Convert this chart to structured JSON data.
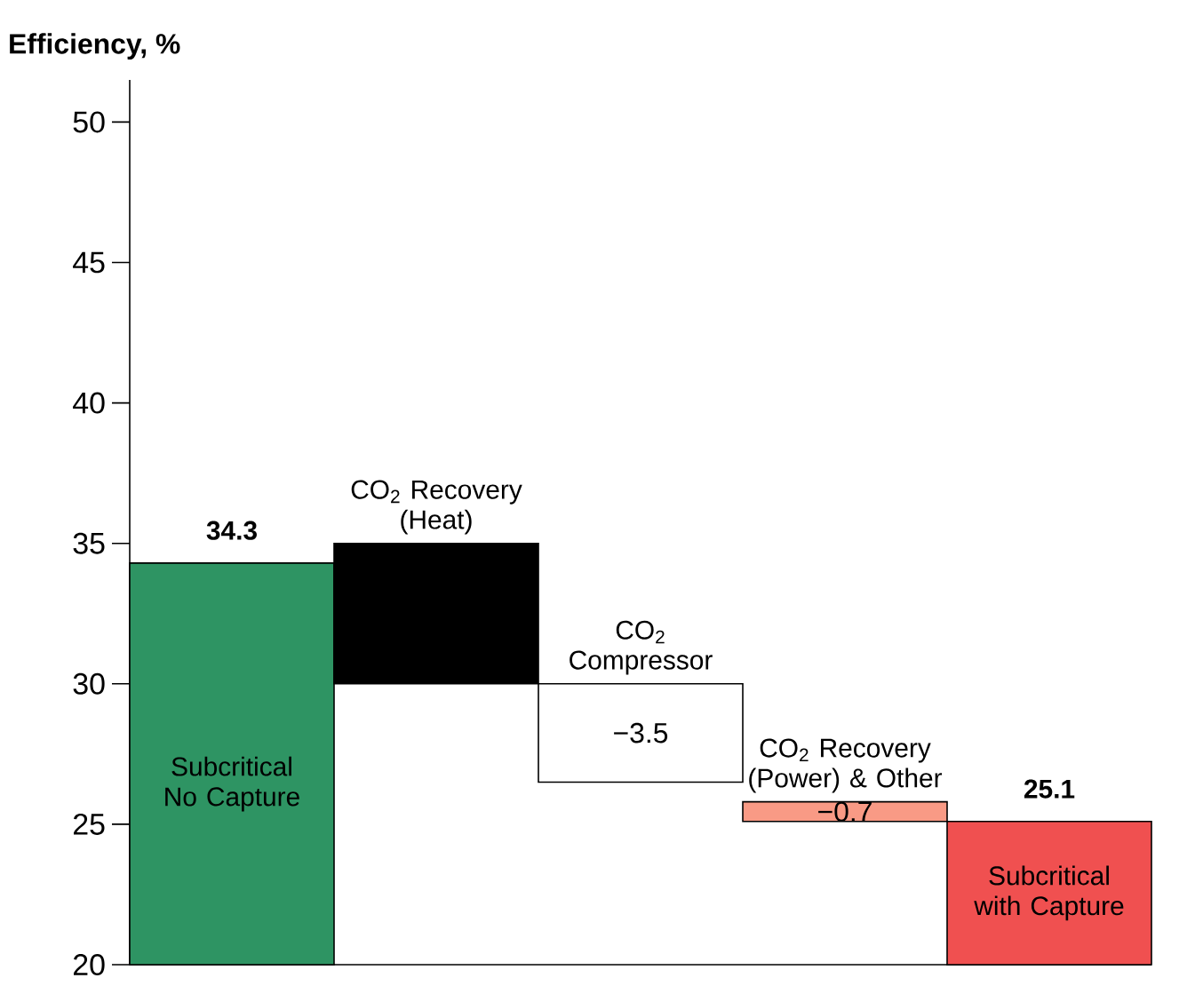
{
  "chart_data": {
    "type": "bar",
    "ylabel": "Efficiency, %",
    "categories": [
      "Subcritical No Capture",
      "CO$_{2}$ Recovery (Heat)",
      "CO$_{2}$ Compressor",
      "CO$_{2}$ Recovery (Power) & Other",
      "Subcritical with Capture"
    ],
    "base": [
      20,
      35,
      30,
      25.8,
      20
    ],
    "values": [
      14.3,
      -5,
      -3.5,
      -0.7,
      5.1
    ],
    "value_labels": [
      "34.3",
      null,
      "−3.5",
      "−0.7",
      "25.1"
    ],
    "colors": [
      "#2e9463",
      "#000000",
      "#ffffff",
      "#f99a85",
      "#f05050"
    ],
    "ylim": [
      20,
      51.5
    ],
    "yticks": [
      20,
      25,
      30,
      35,
      40,
      45,
      50
    ],
    "tick_labels": "y",
    "grid": false
  }
}
